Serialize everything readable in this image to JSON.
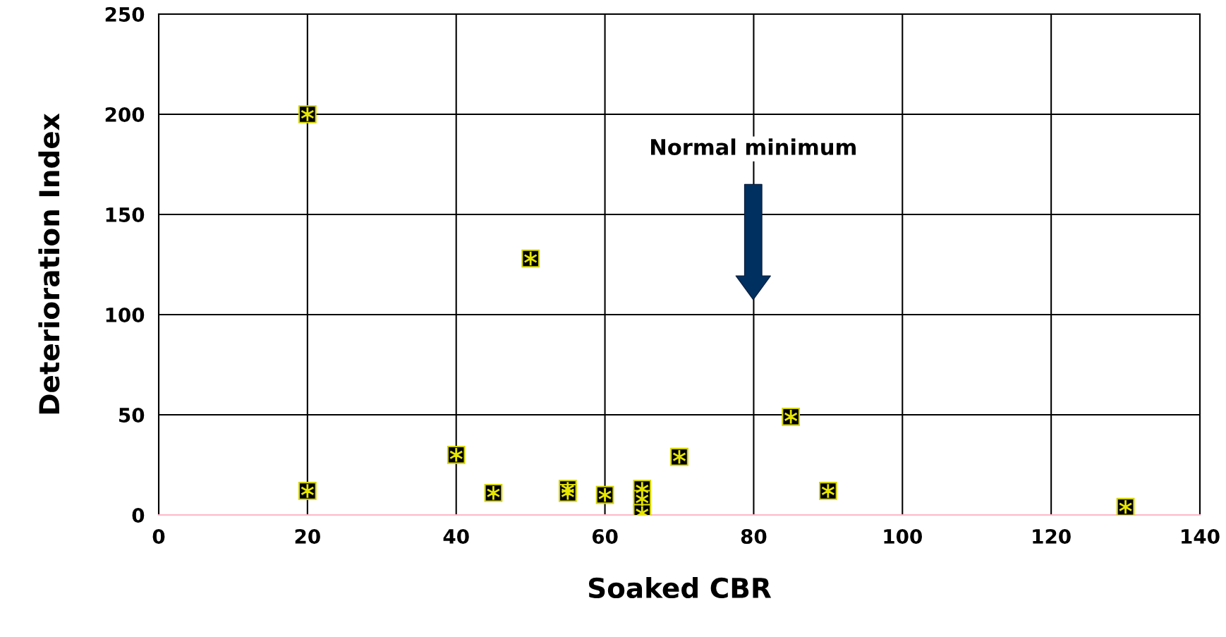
{
  "chart_data": {
    "type": "scatter",
    "xlabel": "Soaked CBR",
    "ylabel": "Deterioration Index",
    "x": [
      20,
      20,
      40,
      45,
      50,
      55,
      55,
      60,
      65,
      65,
      65,
      70,
      85,
      90,
      130
    ],
    "series": [
      {
        "color": "#000000",
        "values": [
          200,
          12,
          30,
          11,
          128,
          13,
          11,
          10,
          13,
          8,
          1,
          29,
          49,
          12,
          4
        ]
      }
    ],
    "xlim": [
      0,
      140
    ],
    "xticks": [
      0,
      20,
      40,
      60,
      80,
      100,
      120,
      140
    ],
    "ylim": [
      0,
      250
    ],
    "yticks": [
      0,
      50,
      100,
      150,
      200,
      250
    ],
    "grid": true,
    "marker": "square",
    "annotations": [
      "Normal minimum"
    ]
  }
}
